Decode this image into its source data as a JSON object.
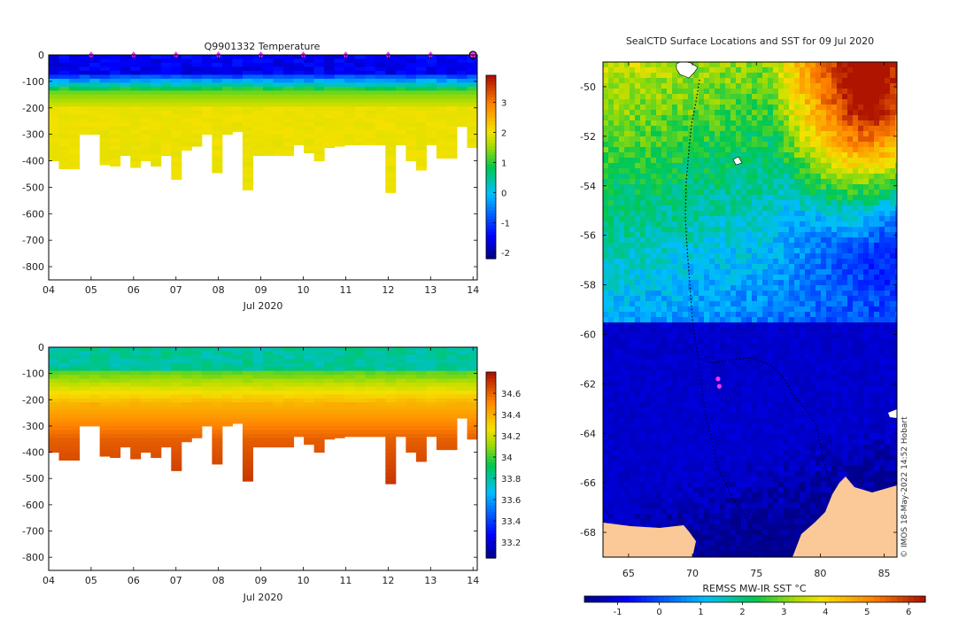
{
  "chart_data": [
    {
      "type": "heatmap",
      "title": "Q9901332  Temperature",
      "variable": "temperature",
      "xlabel": "Jul 2020",
      "ylabel": "",
      "x_ticks": [
        "04",
        "05",
        "06",
        "07",
        "08",
        "09",
        "10",
        "11",
        "12",
        "13",
        "14"
      ],
      "x_range_days": [
        4,
        14.1
      ],
      "y_ticks": [
        0,
        -100,
        -200,
        -300,
        -400,
        -500,
        -600,
        -700,
        -800
      ],
      "ylim": [
        -850,
        0
      ],
      "colorbar_ticks": [
        "3",
        "2",
        "1",
        "0",
        "-1",
        "-2"
      ],
      "colorbar_range": [
        -2.2,
        3.9
      ],
      "surface_markers_days": [
        5,
        6,
        7,
        8,
        9,
        10,
        11,
        12,
        13
      ],
      "profile_bottom_depths": [
        400,
        430,
        430,
        300,
        300,
        415,
        420,
        380,
        425,
        400,
        420,
        380,
        470,
        360,
        345,
        300,
        445,
        300,
        290,
        510,
        380,
        380,
        380,
        380,
        340,
        370,
        400,
        350,
        345,
        340,
        340,
        340,
        340,
        520,
        340,
        400,
        435,
        340,
        390,
        390,
        270,
        350
      ]
    },
    {
      "type": "heatmap",
      "title": "",
      "variable": "salinity",
      "xlabel": "Jul 2020",
      "ylabel": "",
      "x_ticks": [
        "04",
        "05",
        "06",
        "07",
        "08",
        "09",
        "10",
        "11",
        "12",
        "13",
        "14"
      ],
      "x_range_days": [
        4,
        14.1
      ],
      "y_ticks": [
        0,
        -100,
        -200,
        -300,
        -400,
        -500,
        -600,
        -700,
        -800
      ],
      "ylim": [
        -850,
        0
      ],
      "colorbar_ticks": [
        "34.6",
        "34.4",
        "34.2",
        "34",
        "33.8",
        "33.6",
        "33.4",
        "33.2"
      ],
      "colorbar_range": [
        33.05,
        34.8
      ]
    },
    {
      "type": "heatmap",
      "title": "SealCTD Surface Locations and SST for 09 Jul 2020",
      "variable": "sst",
      "xlabel": "",
      "ylabel": "",
      "x_ticks": [
        "65",
        "70",
        "75",
        "80",
        "85"
      ],
      "x_range_lon": [
        63,
        86
      ],
      "y_ticks": [
        "-50",
        "-52",
        "-54",
        "-56",
        "-58",
        "-60",
        "-62",
        "-64",
        "-66",
        "-68"
      ],
      "y_range_lat": [
        -69,
        -49
      ],
      "colorbar_label": "REMSS MW-IR SST °C",
      "colorbar_ticks": [
        "-1",
        "0",
        "1",
        "2",
        "3",
        "4",
        "5",
        "6"
      ],
      "colorbar_range": [
        -1.8,
        6.4
      ],
      "track_points": [
        [
          72.0,
          -61.8
        ],
        [
          72.1,
          -62.1
        ]
      ],
      "credit": "© IMOS 18-May-2022 14:52 Hobart"
    }
  ]
}
